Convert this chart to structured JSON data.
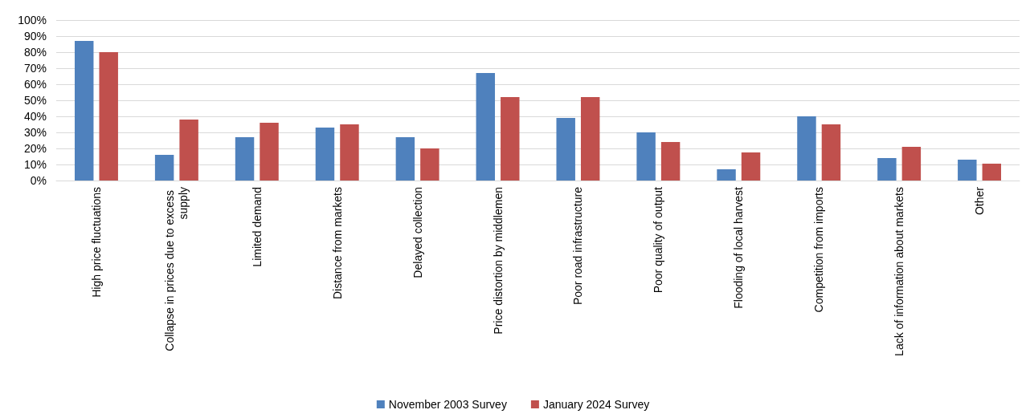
{
  "chart_data": {
    "type": "bar",
    "categories": [
      "High price fluctuations",
      "Collapse in prices due to excess supply",
      "Limited demand",
      "Distance from markets",
      "Delayed collection",
      "Price distortion by middlemen",
      "Poor road infrastructure",
      "Poor quality of output",
      "Flooding of local harvest",
      "Competition from imports",
      "Lack of information about markets",
      "Other"
    ],
    "series": [
      {
        "name": "November 2003 Survey",
        "color": "#4f81bd",
        "values": [
          87,
          16,
          27,
          33,
          27,
          67,
          39,
          30,
          7,
          40,
          14,
          13
        ]
      },
      {
        "name": "January 2024 Survey",
        "color": "#c0504d",
        "values": [
          80,
          38,
          36,
          35,
          20,
          52,
          52,
          24,
          17.5,
          35,
          21,
          10.5
        ]
      }
    ],
    "ylim": [
      0,
      100
    ],
    "yticks": [
      {
        "value": 0,
        "label": "0%"
      },
      {
        "value": 10,
        "label": "10%"
      },
      {
        "value": 20,
        "label": "20%"
      },
      {
        "value": 30,
        "label": "30%"
      },
      {
        "value": 40,
        "label": "40%"
      },
      {
        "value": 50,
        "label": "50%"
      },
      {
        "value": 60,
        "label": "60%"
      },
      {
        "value": 70,
        "label": "70%"
      },
      {
        "value": 80,
        "label": "80%"
      },
      {
        "value": 90,
        "label": "90%"
      },
      {
        "value": 100,
        "label": "100%"
      }
    ],
    "grid": "y",
    "legend": "bottom"
  }
}
